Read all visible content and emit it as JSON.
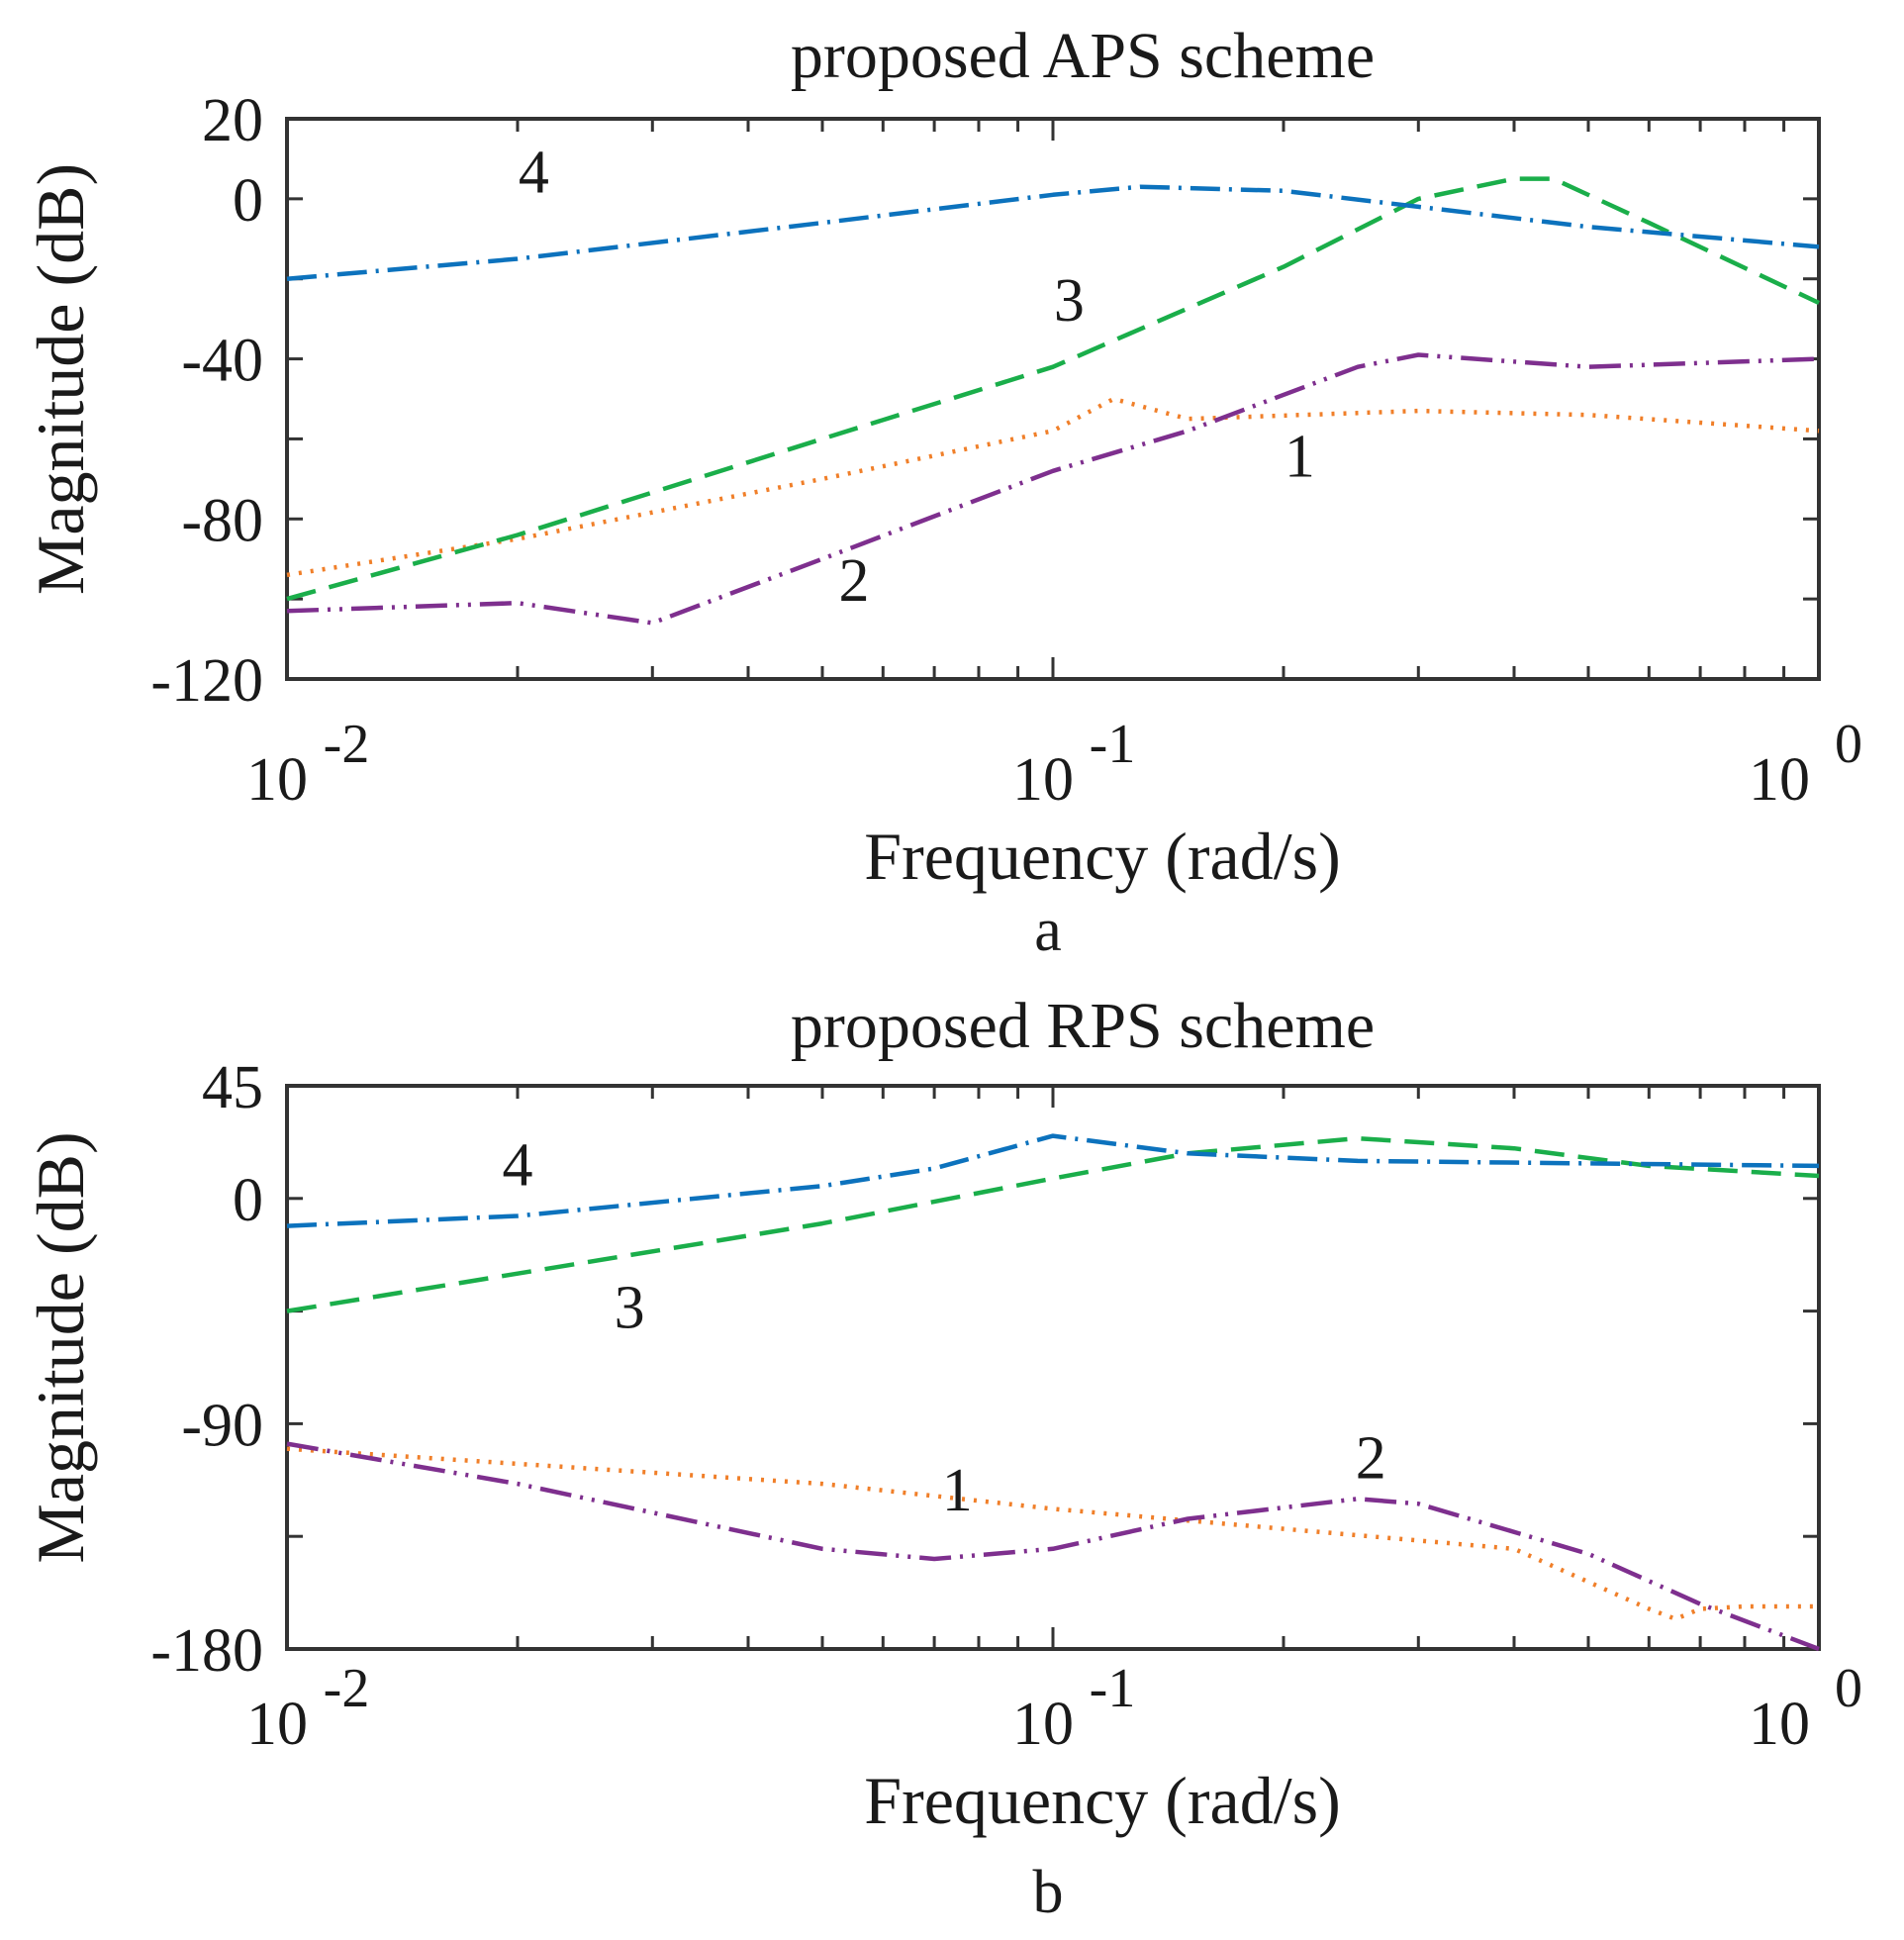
{
  "chart_data": [
    {
      "type": "line",
      "panel_label": "a",
      "title": "proposed APS scheme",
      "xlabel": "Frequency  (rad/s)",
      "ylabel": "Magnitude (dB)",
      "xscale": "log",
      "xlim": [
        0.01,
        1
      ],
      "ylim": [
        -120,
        20
      ],
      "yticks": [
        20,
        0,
        -40,
        -80,
        -120
      ],
      "yticklabels": [
        "20",
        "0",
        "-40",
        "-80",
        "-120"
      ],
      "xticks": [
        {
          "value": 0.01,
          "base": "10",
          "exp": "-2"
        },
        {
          "value": 0.1,
          "base": "10",
          "exp": "-1"
        },
        {
          "value": 1,
          "base": "10",
          "exp": "0"
        }
      ],
      "grid": false,
      "series": [
        {
          "name": "1",
          "label_at": [
            0.21,
            -64
          ],
          "color": "#f07f29",
          "dash": "3 9",
          "x": [
            0.01,
            0.02,
            0.05,
            0.1,
            0.12,
            0.15,
            0.3,
            0.5,
            1.0
          ],
          "y": [
            -94,
            -85,
            -70,
            -58,
            -50,
            -55,
            -53,
            -54,
            -58
          ]
        },
        {
          "name": "2",
          "label_at": [
            0.055,
            -95
          ],
          "color": "#7e2f8e",
          "dash": "32 9 3 9 3 9",
          "x": [
            0.01,
            0.02,
            0.03,
            0.05,
            0.1,
            0.15,
            0.25,
            0.3,
            0.5,
            1.0
          ],
          "y": [
            -103,
            -101,
            -106,
            -90,
            -68,
            -58,
            -42,
            -39,
            -42,
            -40
          ]
        },
        {
          "name": "3",
          "label_at": [
            0.105,
            -25
          ],
          "color": "#1aae4a",
          "dash": "30 14",
          "x": [
            0.01,
            0.02,
            0.05,
            0.1,
            0.2,
            0.3,
            0.4,
            0.45,
            0.6,
            1.0
          ],
          "y": [
            -100,
            -84,
            -60,
            -42,
            -17,
            0,
            5,
            5,
            -6,
            -26
          ]
        },
        {
          "name": "4",
          "label_at": [
            0.021,
            7
          ],
          "color": "#0c72bd",
          "dash": "30 9 3 9",
          "x": [
            0.01,
            0.02,
            0.05,
            0.1,
            0.13,
            0.2,
            0.3,
            0.5,
            1.0
          ],
          "y": [
            -20,
            -15,
            -6,
            1,
            3,
            2,
            -2,
            -7,
            -12
          ]
        }
      ]
    },
    {
      "type": "line",
      "panel_label": "b",
      "title": "proposed RPS scheme",
      "xlabel": "Frequency  (rad/s)",
      "ylabel": "Magnitude (dB)",
      "xscale": "log",
      "xlim": [
        0.01,
        1
      ],
      "ylim": [
        -180,
        45
      ],
      "yticks": [
        45,
        0,
        -90,
        -180
      ],
      "yticklabels": [
        "45",
        "0",
        "-90",
        "-180"
      ],
      "xticks": [
        {
          "value": 0.01,
          "base": "10",
          "exp": "-2"
        },
        {
          "value": 0.1,
          "base": "10",
          "exp": "-1"
        },
        {
          "value": 1,
          "base": "10",
          "exp": "0"
        }
      ],
      "grid": false,
      "series": [
        {
          "name": "1",
          "label_at": [
            0.075,
            -116
          ],
          "color": "#f07f29",
          "dash": "3 9",
          "x": [
            0.01,
            0.02,
            0.05,
            0.1,
            0.2,
            0.4,
            0.6,
            0.65,
            0.7,
            0.8,
            1.0
          ],
          "y": [
            -100,
            -106,
            -114,
            -124,
            -132,
            -140,
            -164,
            -168,
            -164,
            -163,
            -163
          ]
        },
        {
          "name": "2",
          "label_at": [
            0.26,
            -103
          ],
          "color": "#7e2f8e",
          "dash": "32 9 3 9 3 9",
          "x": [
            0.01,
            0.02,
            0.05,
            0.07,
            0.1,
            0.15,
            0.25,
            0.3,
            0.5,
            0.7,
            1.0
          ],
          "y": [
            -98,
            -114,
            -140,
            -144,
            -140,
            -128,
            -120,
            -122,
            -142,
            -162,
            -180
          ]
        },
        {
          "name": "3",
          "label_at": [
            0.028,
            -43
          ],
          "color": "#1aae4a",
          "dash": "30 14",
          "x": [
            0.01,
            0.02,
            0.05,
            0.1,
            0.15,
            0.25,
            0.4,
            0.6,
            1.0
          ],
          "y": [
            -45,
            -30,
            -10,
            8,
            18,
            24,
            20,
            13,
            9
          ]
        },
        {
          "name": "4",
          "label_at": [
            0.02,
            14
          ],
          "color": "#0c72bd",
          "dash": "30 9 3 9",
          "x": [
            0.01,
            0.02,
            0.05,
            0.07,
            0.1,
            0.15,
            0.25,
            0.5,
            1.0
          ],
          "y": [
            -11,
            -7,
            5,
            12,
            25,
            18,
            15,
            14,
            13
          ]
        }
      ]
    }
  ]
}
